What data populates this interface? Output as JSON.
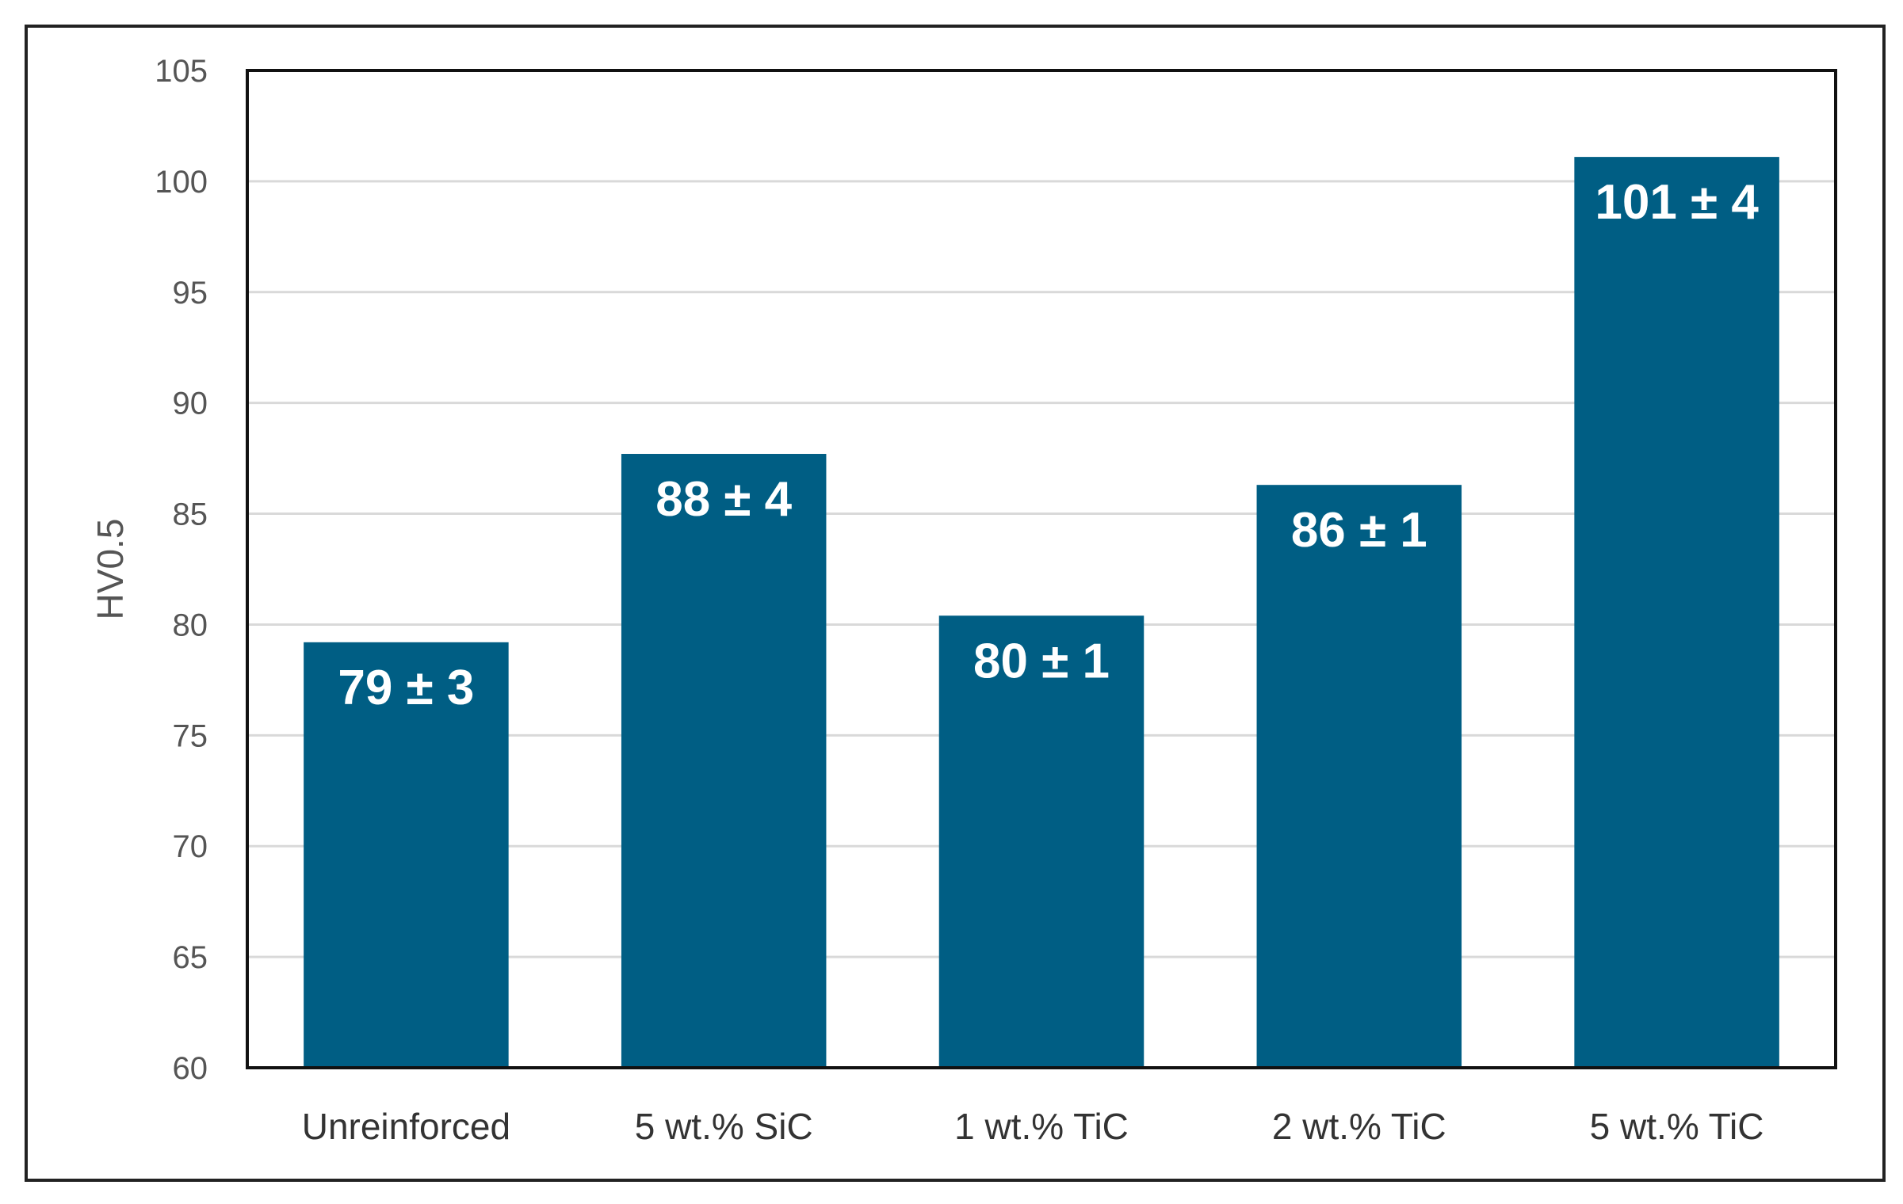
{
  "chart_data": {
    "type": "bar",
    "title": "",
    "xlabel": "",
    "ylabel": "HV0.5",
    "categories": [
      "Unreinforced",
      "5 wt.% SiC",
      "1 wt.% TiC",
      "2 wt.% TiC",
      "5 wt.% TiC"
    ],
    "values": [
      79.2,
      87.7,
      80.4,
      86.3,
      101.1
    ],
    "data_labels": [
      "79 ± 3",
      "88 ± 4",
      "80 ± 1",
      "86 ± 1",
      "101 ± 4"
    ],
    "ylim": [
      60,
      105
    ],
    "yticks": [
      60,
      65,
      70,
      75,
      80,
      85,
      90,
      95,
      100,
      105
    ],
    "grid": true,
    "bar_color": "#005e84"
  }
}
